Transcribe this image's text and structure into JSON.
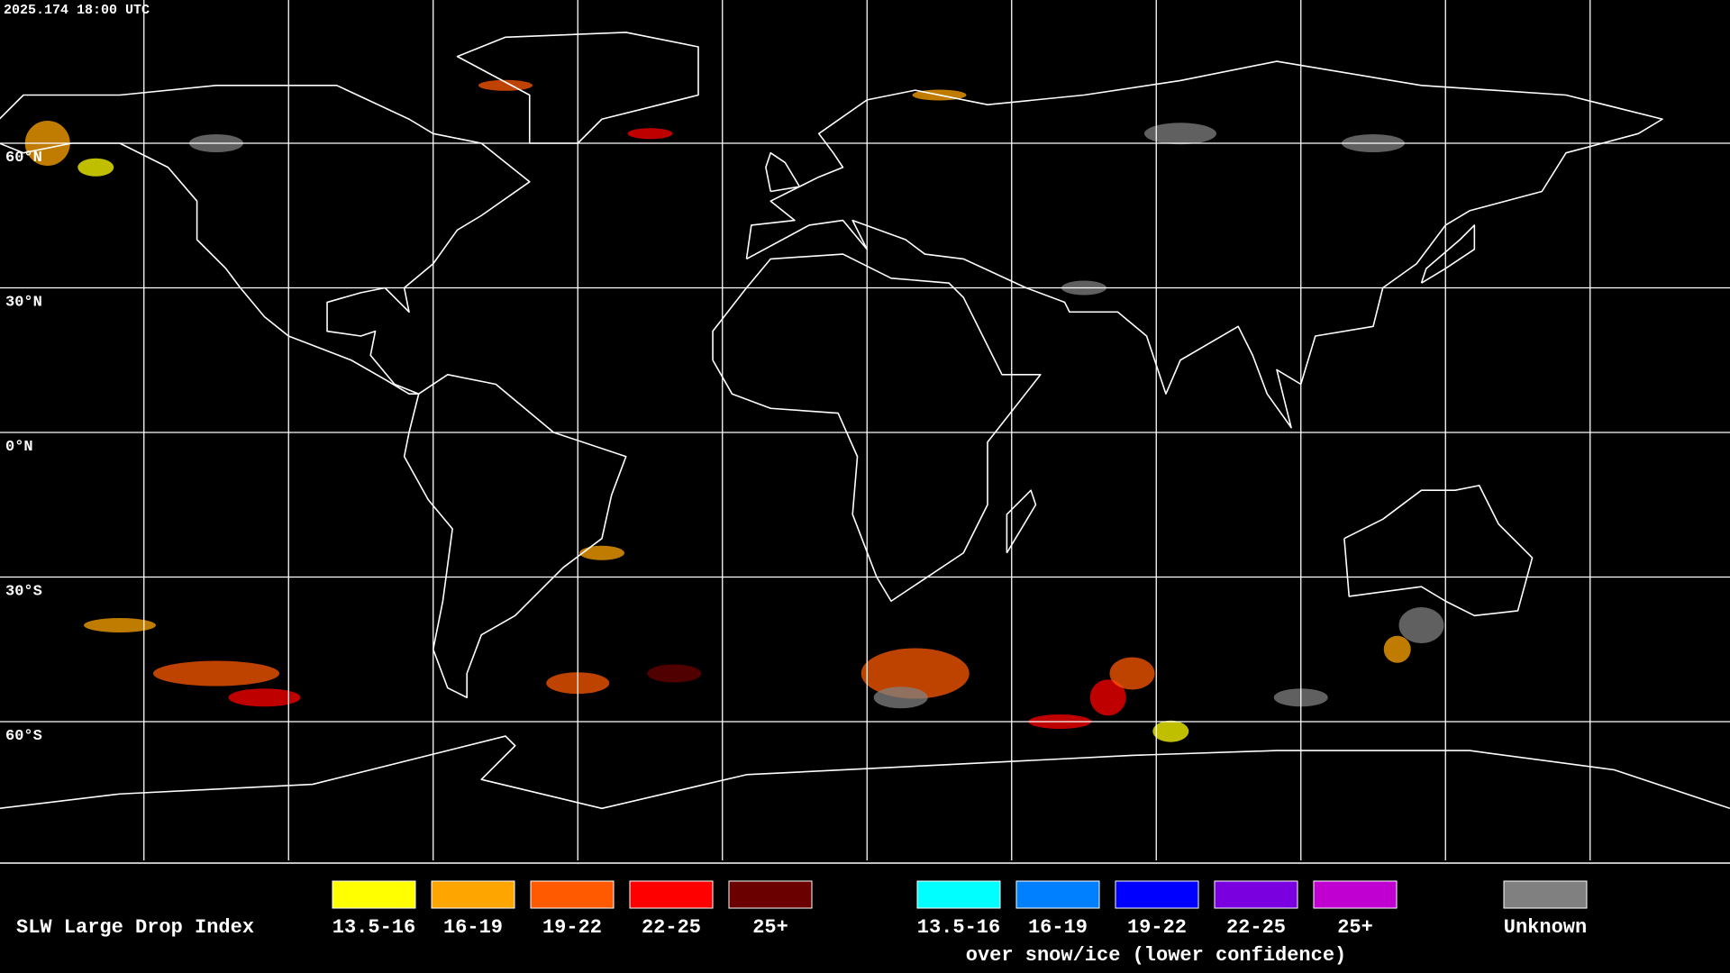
{
  "header": {
    "timestamp": "2025.174 18:00 UTC"
  },
  "grid": {
    "lat_labels": [
      "60°N",
      "30°N",
      "0°N",
      "30°S",
      "60°S"
    ]
  },
  "legend": {
    "title": "SLW Large Drop Index",
    "items": [
      {
        "label": "13.5-16",
        "color": "#ffff00"
      },
      {
        "label": "16-19",
        "color": "#ffa500"
      },
      {
        "label": "19-22",
        "color": "#ff5a00"
      },
      {
        "label": "22-25",
        "color": "#ff0000"
      },
      {
        "label": "25+",
        "color": "#6b0000"
      }
    ],
    "snow_items": [
      {
        "label": "13.5-16",
        "color": "#00ffff"
      },
      {
        "label": "16-19",
        "color": "#0080ff"
      },
      {
        "label": "19-22",
        "color": "#0000ff"
      },
      {
        "label": "22-25",
        "color": "#7a00e0"
      },
      {
        "label": "25+",
        "color": "#c000d0"
      }
    ],
    "snow_note": "over snow/ice (lower confidence)",
    "unknown": {
      "label": "Unknown",
      "color": "#808080"
    }
  }
}
